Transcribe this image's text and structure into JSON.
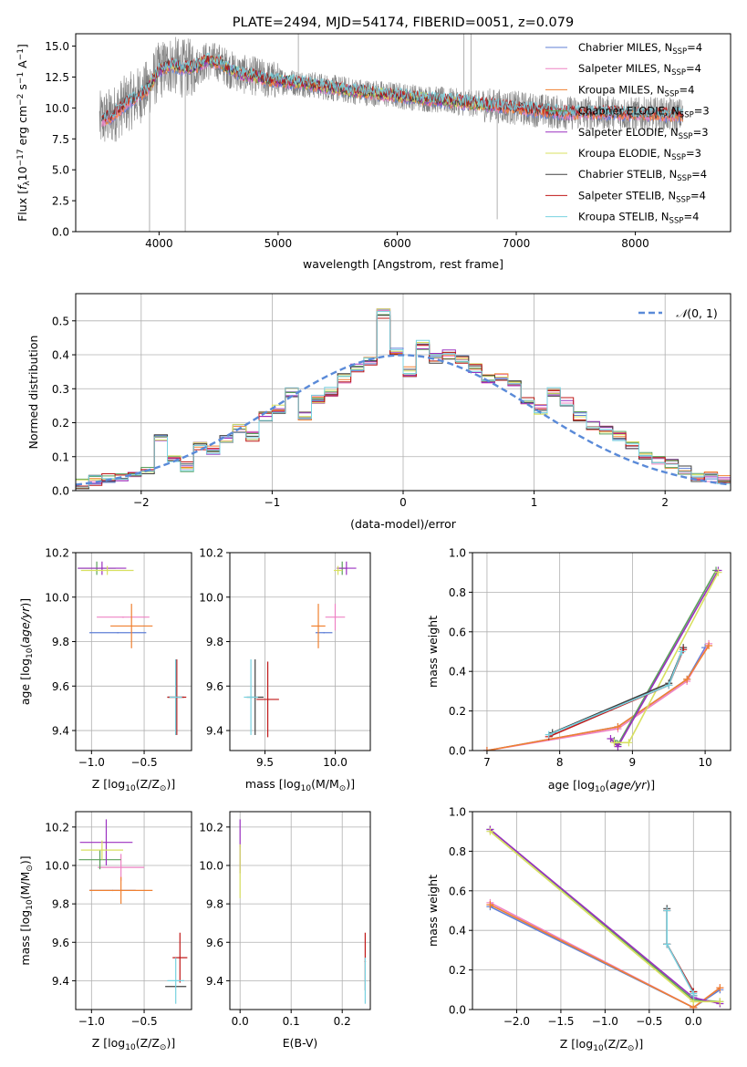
{
  "colors": {
    "chabrier_miles": "#5f7fd6",
    "salpeter_miles": "#ee82c4",
    "kroupa_miles": "#f08030",
    "chabrier_elodie": "#5aa05a",
    "salpeter_elodie": "#9b30c0",
    "kroupa_elodie": "#d8e060",
    "chabrier_stelib": "#404040",
    "salpeter_stelib": "#c01818",
    "kroupa_stelib": "#78d2e0",
    "data": "#808080",
    "gaussian": "#5a8ad8"
  },
  "chart_data": [
    {
      "type": "line",
      "title": "PLATE=2494, MJD=54174, FIBERID=0051, z=0.079",
      "xlabel": "wavelength [Angstrom, rest frame]",
      "ylabel_parts": [
        "Flux [",
        "f",
        "λ",
        "10",
        "−17",
        " erg cm",
        "−2",
        " s",
        "−1",
        " A",
        "−1",
        "]"
      ],
      "xlim": [
        3300,
        8800
      ],
      "ylim": [
        0,
        16
      ],
      "xticks": [
        4000,
        5000,
        6000,
        7000,
        8000
      ],
      "yticks": [
        0.0,
        2.5,
        5.0,
        7.5,
        10.0,
        12.5,
        15.0
      ],
      "grid": false,
      "legend_position": "top-right",
      "legend": [
        {
          "label": "Chabrier MILES, N",
          "sub": "SSP",
          "val": "=4",
          "color_key": "chabrier_miles"
        },
        {
          "label": "Salpeter MILES, N",
          "sub": "SSP",
          "val": "=4",
          "color_key": "salpeter_miles"
        },
        {
          "label": "Kroupa MILES, N",
          "sub": "SSP",
          "val": "=4",
          "color_key": "kroupa_miles"
        },
        {
          "label": "Chabrier ELODIE, N",
          "sub": "SSP",
          "val": "=3",
          "color_key": "chabrier_elodie"
        },
        {
          "label": "Salpeter ELODIE, N",
          "sub": "SSP",
          "val": "=3",
          "color_key": "salpeter_elodie"
        },
        {
          "label": "Kroupa ELODIE, N",
          "sub": "SSP",
          "val": "=3",
          "color_key": "kroupa_elodie"
        },
        {
          "label": "Chabrier STELIB, N",
          "sub": "SSP",
          "val": "=4",
          "color_key": "chabrier_stelib"
        },
        {
          "label": "Salpeter STELIB, N",
          "sub": "SSP",
          "val": "=4",
          "color_key": "salpeter_stelib"
        },
        {
          "label": "Kroupa STELIB, N",
          "sub": "SSP",
          "val": "=4",
          "color_key": "kroupa_stelib"
        }
      ],
      "continuum": {
        "x": [
          3500,
          3600,
          3700,
          3800,
          3900,
          4000,
          4100,
          4200,
          4300,
          4400,
          4500,
          4600,
          4700,
          4800,
          4900,
          5000,
          5200,
          5400,
          5600,
          5800,
          6000,
          6200,
          6400,
          6600,
          6800,
          7000,
          7200,
          7400,
          7600,
          7800,
          8000,
          8200,
          8400
        ],
        "y": [
          9.0,
          9.3,
          10.2,
          10.8,
          11.5,
          13.0,
          13.5,
          13.2,
          13.3,
          13.8,
          13.7,
          13.1,
          12.7,
          12.6,
          12.3,
          12.2,
          12.0,
          11.7,
          11.4,
          11.2,
          11.0,
          10.8,
          10.6,
          10.4,
          10.2,
          10.0,
          9.8,
          9.6,
          9.6,
          9.6,
          9.5,
          9.5,
          9.4
        ]
      }
    },
    {
      "type": "bar",
      "xlabel": "(data-model)/error",
      "ylabel": "Normed distribution",
      "xlim": [
        -2.5,
        2.5
      ],
      "ylim": [
        0,
        0.58
      ],
      "xticks": [
        -2,
        -1,
        0,
        1,
        2
      ],
      "yticks": [
        0.0,
        0.1,
        0.2,
        0.3,
        0.4,
        0.5
      ],
      "grid": true,
      "legend_position": "top-right",
      "legend_parts": [
        "𝒩",
        "(0, 1)"
      ],
      "bins": [
        -2.5,
        -2.4,
        -2.3,
        -2.2,
        -2.1,
        -2.0,
        -1.9,
        -1.8,
        -1.7,
        -1.6,
        -1.5,
        -1.4,
        -1.3,
        -1.2,
        -1.1,
        -1.0,
        -0.9,
        -0.8,
        -0.7,
        -0.6,
        -0.5,
        -0.4,
        -0.3,
        -0.2,
        -0.1,
        0.0,
        0.1,
        0.2,
        0.3,
        0.4,
        0.5,
        0.6,
        0.7,
        0.8,
        0.9,
        1.0,
        1.1,
        1.2,
        1.3,
        1.4,
        1.5,
        1.6,
        1.7,
        1.8,
        1.9,
        2.0,
        2.1,
        2.2,
        2.3,
        2.4,
        2.5
      ],
      "hist_values": [
        0.02,
        0.03,
        0.035,
        0.04,
        0.05,
        0.06,
        0.16,
        0.09,
        0.07,
        0.13,
        0.12,
        0.15,
        0.18,
        0.16,
        0.22,
        0.24,
        0.29,
        0.22,
        0.27,
        0.29,
        0.33,
        0.36,
        0.38,
        0.52,
        0.41,
        0.35,
        0.43,
        0.39,
        0.4,
        0.39,
        0.36,
        0.33,
        0.34,
        0.31,
        0.27,
        0.24,
        0.29,
        0.26,
        0.22,
        0.19,
        0.18,
        0.16,
        0.13,
        0.1,
        0.09,
        0.08,
        0.06,
        0.04,
        0.04,
        0.03
      ]
    },
    {
      "type": "scatter",
      "xlabel_parts": [
        "Z [log",
        "10",
        "(Z/Z",
        "⊙",
        ")]"
      ],
      "ylabel_parts": [
        "age  [log",
        "10",
        "(",
        "age/yr",
        ")]"
      ],
      "xlim": [
        -1.15,
        -0.05
      ],
      "ylim": [
        9.31,
        10.2
      ],
      "xticks": [
        -1.0,
        -0.5
      ],
      "yticks": [
        9.4,
        9.6,
        9.8,
        10.0,
        10.2
      ],
      "grid": true,
      "points": [
        {
          "color_key": "chabrier_miles",
          "x": -0.75,
          "xerr": 0.27,
          "y": 9.84,
          "yerr": 0.0
        },
        {
          "color_key": "salpeter_miles",
          "x": -0.7,
          "xerr": 0.25,
          "y": 9.91,
          "yerr": 0.0
        },
        {
          "color_key": "kroupa_miles",
          "x": -0.62,
          "xerr": 0.2,
          "y": 9.87,
          "yerr": 0.1
        },
        {
          "color_key": "chabrier_elodie",
          "x": -0.95,
          "xerr": 0.18,
          "y": 10.13,
          "yerr": 0.03
        },
        {
          "color_key": "salpeter_elodie",
          "x": -0.9,
          "xerr": 0.23,
          "y": 10.13,
          "yerr": 0.03
        },
        {
          "color_key": "kroupa_elodie",
          "x": -0.85,
          "xerr": 0.25,
          "y": 10.12,
          "yerr": 0.02
        },
        {
          "color_key": "chabrier_stelib",
          "x": -0.2,
          "xerr": 0.08,
          "y": 9.55,
          "yerr": 0.17
        },
        {
          "color_key": "salpeter_stelib",
          "x": -0.19,
          "xerr": 0.09,
          "y": 9.55,
          "yerr": 0.17
        },
        {
          "color_key": "kroupa_stelib",
          "x": -0.2,
          "xerr": 0.06,
          "y": 9.55,
          "yerr": 0.17
        }
      ]
    },
    {
      "type": "scatter",
      "xlabel_parts": [
        "mass [log",
        "10",
        "(M/M",
        "⊙",
        ")]"
      ],
      "xlim": [
        9.25,
        10.25
      ],
      "ylim": [
        9.31,
        10.2
      ],
      "xticks": [
        9.5,
        10.0
      ],
      "yticks": [
        9.4,
        9.6,
        9.8,
        10.0,
        10.2
      ],
      "grid": true,
      "points": [
        {
          "color_key": "chabrier_miles",
          "x": 9.92,
          "xerr": 0.06,
          "y": 9.84,
          "yerr": 0.0
        },
        {
          "color_key": "salpeter_miles",
          "x": 10.0,
          "xerr": 0.07,
          "y": 9.91,
          "yerr": 0.06
        },
        {
          "color_key": "kroupa_miles",
          "x": 9.88,
          "xerr": 0.05,
          "y": 9.87,
          "yerr": 0.1
        },
        {
          "color_key": "chabrier_elodie",
          "x": 10.05,
          "xerr": 0.03,
          "y": 10.13,
          "yerr": 0.03
        },
        {
          "color_key": "salpeter_elodie",
          "x": 10.08,
          "xerr": 0.07,
          "y": 10.13,
          "yerr": 0.03
        },
        {
          "color_key": "kroupa_elodie",
          "x": 10.02,
          "xerr": 0.03,
          "y": 10.12,
          "yerr": 0.02
        },
        {
          "color_key": "chabrier_stelib",
          "x": 9.43,
          "xerr": 0.06,
          "y": 9.55,
          "yerr": 0.17
        },
        {
          "color_key": "salpeter_stelib",
          "x": 9.52,
          "xerr": 0.08,
          "y": 9.54,
          "yerr": 0.17
        },
        {
          "color_key": "kroupa_stelib",
          "x": 9.4,
          "xerr": 0.05,
          "y": 9.55,
          "yerr": 0.17
        }
      ]
    },
    {
      "type": "line",
      "xlabel_parts": [
        "age  [log",
        "10",
        "(",
        "age/yr",
        ")]"
      ],
      "ylabel": "mass weight",
      "xlim": [
        6.8,
        10.35
      ],
      "ylim": [
        0,
        1.0
      ],
      "xticks": [
        7,
        8,
        9,
        10
      ],
      "yticks": [
        0.0,
        0.2,
        0.4,
        0.6,
        0.8,
        1.0
      ],
      "grid": true,
      "series": [
        {
          "color_key": "chabrier_miles",
          "x": [
            7.0,
            8.8,
            9.75,
            10.0
          ],
          "y": [
            0.0,
            0.12,
            0.36,
            0.52
          ]
        },
        {
          "color_key": "salpeter_miles",
          "x": [
            7.0,
            8.8,
            9.75,
            10.05
          ],
          "y": [
            0.0,
            0.11,
            0.35,
            0.54
          ]
        },
        {
          "color_key": "kroupa_miles",
          "x": [
            7.0,
            8.8,
            9.75,
            10.05
          ],
          "y": [
            0.0,
            0.12,
            0.36,
            0.53
          ]
        },
        {
          "color_key": "chabrier_elodie",
          "x": [
            8.75,
            8.8,
            10.15
          ],
          "y": [
            0.05,
            0.03,
            0.91
          ]
        },
        {
          "color_key": "salpeter_elodie",
          "x": [
            8.7,
            8.8,
            10.18
          ],
          "y": [
            0.06,
            0.02,
            0.91
          ]
        },
        {
          "color_key": "kroupa_elodie",
          "x": [
            8.75,
            8.95,
            10.18
          ],
          "y": [
            0.04,
            0.04,
            0.9
          ]
        },
        {
          "color_key": "chabrier_stelib",
          "x": [
            7.9,
            9.5,
            9.7
          ],
          "y": [
            0.09,
            0.34,
            0.52
          ]
        },
        {
          "color_key": "salpeter_stelib",
          "x": [
            7.85,
            9.5,
            9.7
          ],
          "y": [
            0.07,
            0.33,
            0.51
          ]
        },
        {
          "color_key": "kroupa_stelib",
          "x": [
            7.85,
            9.5,
            9.68
          ],
          "y": [
            0.08,
            0.33,
            0.5
          ]
        }
      ]
    },
    {
      "type": "scatter",
      "xlabel_parts": [
        "Z [log",
        "10",
        "(Z/Z",
        "⊙",
        ")]"
      ],
      "ylabel_parts": [
        "mass [log",
        "10",
        "(M/M",
        "⊙",
        ")]"
      ],
      "xlim": [
        -1.15,
        -0.05
      ],
      "ylim": [
        9.25,
        10.28
      ],
      "xticks": [
        -1.0,
        -0.5
      ],
      "yticks": [
        9.4,
        9.6,
        9.8,
        10.0,
        10.2
      ],
      "grid": true,
      "points": [
        {
          "color_key": "chabrier_miles",
          "x": -0.8,
          "xerr": 0.22,
          "y": 9.87,
          "yerr": 0.0
        },
        {
          "color_key": "salpeter_miles",
          "x": -0.72,
          "xerr": 0.22,
          "y": 9.99,
          "yerr": 0.07
        },
        {
          "color_key": "kroupa_miles",
          "x": -0.72,
          "xerr": 0.3,
          "y": 9.87,
          "yerr": 0.07
        },
        {
          "color_key": "chabrier_elodie",
          "x": -0.92,
          "xerr": 0.2,
          "y": 10.03,
          "yerr": 0.05
        },
        {
          "color_key": "salpeter_elodie",
          "x": -0.86,
          "xerr": 0.25,
          "y": 10.12,
          "yerr": 0.12
        },
        {
          "color_key": "kroupa_elodie",
          "x": -0.9,
          "xerr": 0.2,
          "y": 10.08,
          "yerr": 0.05
        },
        {
          "color_key": "chabrier_stelib",
          "x": -0.2,
          "xerr": 0.1,
          "y": 9.37,
          "yerr": 0.0
        },
        {
          "color_key": "salpeter_stelib",
          "x": -0.16,
          "xerr": 0.07,
          "y": 9.52,
          "yerr": 0.13
        },
        {
          "color_key": "kroupa_stelib",
          "x": -0.2,
          "xerr": 0.08,
          "y": 9.4,
          "yerr": 0.12
        }
      ]
    },
    {
      "type": "scatter",
      "xlabel": "E(B-V)",
      "xlim": [
        -0.02,
        0.255
      ],
      "ylim": [
        9.25,
        10.28
      ],
      "xticks": [
        0.0,
        0.1,
        0.2
      ],
      "yticks": [
        9.4,
        9.6,
        9.8,
        10.0,
        10.2
      ],
      "grid": true,
      "points": [
        {
          "color_key": "salpeter_elodie",
          "x": 0.0,
          "xerr": 0.0,
          "y": 10.1,
          "yerr": 0.14
        },
        {
          "color_key": "kroupa_elodie",
          "x": 0.0,
          "xerr": 0.0,
          "y": 9.97,
          "yerr": 0.14
        },
        {
          "color_key": "salpeter_stelib",
          "x": 0.245,
          "xerr": 0.0,
          "y": 9.5,
          "yerr": 0.15
        },
        {
          "color_key": "kroupa_stelib",
          "x": 0.245,
          "xerr": 0.0,
          "y": 9.4,
          "yerr": 0.12
        }
      ]
    },
    {
      "type": "line",
      "xlabel_parts": [
        "Z [log",
        "10",
        "(Z/Z",
        "⊙",
        ")]"
      ],
      "ylabel": "mass weight",
      "xlim": [
        -2.5,
        0.42
      ],
      "ylim": [
        0,
        1.0
      ],
      "xticks": [
        -2.0,
        -1.5,
        -1.0,
        -0.5,
        0.0
      ],
      "yticks": [
        0.0,
        0.2,
        0.4,
        0.6,
        0.8,
        1.0
      ],
      "grid": true,
      "series": [
        {
          "color_key": "chabrier_miles",
          "x": [
            -2.3,
            0.0,
            0.3
          ],
          "y": [
            0.52,
            0.01,
            0.1
          ]
        },
        {
          "color_key": "salpeter_miles",
          "x": [
            -2.3,
            0.0,
            0.3
          ],
          "y": [
            0.54,
            0.01,
            0.11
          ]
        },
        {
          "color_key": "kroupa_miles",
          "x": [
            -2.3,
            0.0,
            0.3
          ],
          "y": [
            0.53,
            0.01,
            0.11
          ]
        },
        {
          "color_key": "chabrier_elodie",
          "x": [
            -2.3,
            0.0,
            0.3
          ],
          "y": [
            0.91,
            0.05,
            0.04
          ]
        },
        {
          "color_key": "salpeter_elodie",
          "x": [
            -2.3,
            0.0,
            0.3
          ],
          "y": [
            0.91,
            0.06,
            0.03
          ]
        },
        {
          "color_key": "kroupa_elodie",
          "x": [
            -2.3,
            0.0,
            0.3
          ],
          "y": [
            0.9,
            0.04,
            0.04
          ]
        },
        {
          "color_key": "chabrier_stelib",
          "x": [
            -0.3,
            -0.3,
            0.0,
            0.0
          ],
          "y": [
            0.51,
            0.33,
            0.09,
            0.07
          ]
        },
        {
          "color_key": "salpeter_stelib",
          "x": [
            -0.3,
            -0.3,
            0.0,
            0.0
          ],
          "y": [
            0.5,
            0.33,
            0.09,
            0.07
          ]
        },
        {
          "color_key": "kroupa_stelib",
          "x": [
            -0.3,
            -0.3,
            0.0,
            0.0
          ],
          "y": [
            0.5,
            0.33,
            0.08,
            0.07
          ]
        }
      ]
    }
  ]
}
